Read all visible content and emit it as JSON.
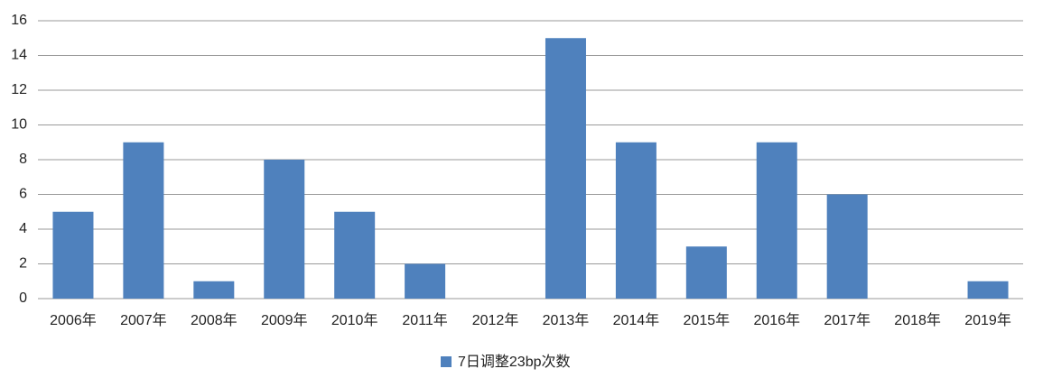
{
  "chart_data": {
    "type": "bar",
    "categories": [
      "2006年",
      "2007年",
      "2008年",
      "2009年",
      "2010年",
      "2011年",
      "2012年",
      "2013年",
      "2014年",
      "2015年",
      "2016年",
      "2017年",
      "2018年",
      "2019年"
    ],
    "series": [
      {
        "name": "7日调整23bp次数",
        "color": "#4f81bd",
        "values": [
          5,
          9,
          1,
          8,
          5,
          2,
          0,
          15,
          9,
          3,
          9,
          6,
          0,
          1
        ]
      }
    ],
    "ylim": [
      0,
      16
    ],
    "yticks": [
      0,
      2,
      4,
      6,
      8,
      10,
      12,
      14,
      16
    ],
    "grid": true,
    "legend": "bottom"
  }
}
